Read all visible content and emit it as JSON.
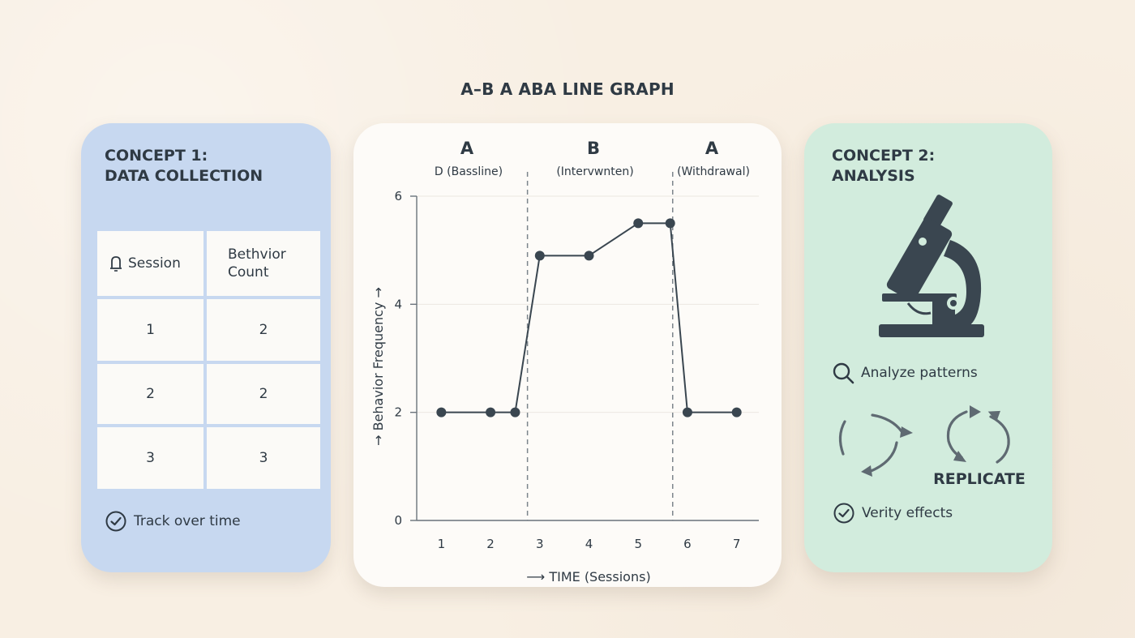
{
  "page_title": "A–B A ABA LINE GRAPH",
  "concept1": {
    "title_line1": "CONCEPT 1:",
    "title_line2": "DATA COLLECTION",
    "table": {
      "headers": [
        "Session",
        "Bethvior Count"
      ],
      "header_count_lines": [
        "Bethvior",
        "Count"
      ],
      "rows": [
        [
          "1",
          "2"
        ],
        [
          "2",
          "2"
        ],
        [
          "3",
          "3"
        ]
      ]
    },
    "footer": "Track over time"
  },
  "chart_data": {
    "type": "line",
    "title": "A–B A ABA LINE GRAPH",
    "phases": [
      {
        "letter": "A",
        "label": "D (Bassline)"
      },
      {
        "letter": "B",
        "label": "(Intervwnten)"
      },
      {
        "letter": "A",
        "label": "(Withdrawal)"
      }
    ],
    "x": [
      1,
      2,
      2.5,
      3,
      4,
      5,
      5.65,
      6,
      7
    ],
    "y": [
      2,
      2,
      2,
      4.9,
      4.9,
      5.5,
      5.5,
      2,
      2
    ],
    "x_ticks": [
      "1",
      "2",
      "3",
      "4",
      "5",
      "6",
      "7"
    ],
    "y_ticks": [
      "0",
      "2",
      "4",
      "6"
    ],
    "ylim": [
      0,
      6
    ],
    "phase_change_lines_x": [
      2.75,
      5.7
    ],
    "xlabel": "TIME (Sessions)",
    "ylabel": "Behavior Frequency",
    "grid": true,
    "line_color": "#3a4650"
  },
  "concept2": {
    "title_line1": "CONCEPT 2:",
    "title_line2": "ANALYSIS",
    "analyze_label": "Analyze patterns",
    "replicate_label": "REPLICATE",
    "verify_label": "Verity effects"
  },
  "colors": {
    "left_card": "#c7d8f0",
    "right_card": "#d2ecdd",
    "ink": "#2f3a44"
  }
}
